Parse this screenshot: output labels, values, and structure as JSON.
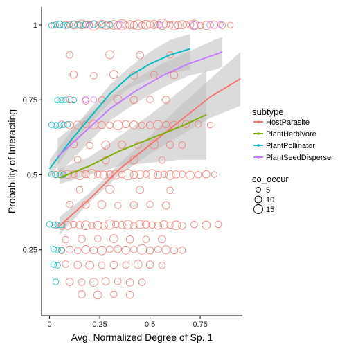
{
  "chart_data": {
    "type": "scatter",
    "title": "",
    "xlabel": "Avg. Normalized Degree of Sp. 1",
    "ylabel": "Probability of Interacting",
    "xlim": [
      -0.04,
      0.96
    ],
    "ylim": [
      0.03,
      1.06
    ],
    "x_ticks": [
      0,
      0.25,
      0.5,
      0.75
    ],
    "x_tick_labels": [
      "0",
      "0.25",
      "0.5",
      "0.75"
    ],
    "y_ticks": [
      0.25,
      0.5,
      0.75,
      1
    ],
    "y_tick_labels": [
      "0.25",
      "0.5",
      "0.75",
      "1"
    ],
    "grid": false,
    "colors": {
      "HostParasite": "#F8766D",
      "PlantHerbivore": "#7CAE00",
      "PlantPollinator": "#00BFC4",
      "PlantSeedDisperser": "#C77CFF",
      "ribbon": "#bdbdbd"
    },
    "legend_color": {
      "title": "subtype",
      "placement": "right",
      "entries": [
        "HostParasite",
        "PlantHerbivore",
        "PlantPollinator",
        "PlantSeedDisperser"
      ]
    },
    "legend_size": {
      "title": "co_occur",
      "placement": "right",
      "entries": [
        {
          "label": "5",
          "value": 5
        },
        {
          "label": "10",
          "value": 10
        },
        {
          "label": "15",
          "value": 15
        }
      ]
    },
    "points": [
      {
        "group": "HostParasite",
        "y": 1,
        "x": [
          0.02,
          0.05,
          0.08,
          0.1,
          0.12,
          0.14,
          0.16,
          0.18,
          0.2,
          0.22,
          0.24,
          0.26,
          0.28,
          0.3,
          0.32,
          0.34,
          0.36,
          0.38,
          0.4,
          0.42,
          0.44,
          0.46,
          0.48,
          0.5,
          0.52,
          0.54,
          0.56,
          0.58,
          0.6,
          0.62,
          0.64,
          0.66,
          0.68,
          0.7,
          0.72,
          0.75,
          0.78,
          0.82,
          0.86,
          0.9
        ],
        "co_occur": [
          4,
          5,
          6,
          4,
          7,
          5,
          8,
          6,
          5,
          9,
          4,
          7,
          6,
          5,
          8,
          6,
          10,
          5,
          7,
          6,
          9,
          5,
          8,
          6,
          7,
          5,
          10,
          6,
          5,
          8,
          6,
          7,
          5,
          6,
          9,
          5,
          7,
          6,
          5,
          4
        ]
      },
      {
        "group": "PlantPollinator",
        "y": 1,
        "x": [
          0.01,
          0.03,
          0.05,
          0.07,
          0.09,
          0.12,
          0.15,
          0.18,
          0.22,
          0.26,
          0.3
        ],
        "co_occur": [
          4,
          4,
          5,
          4,
          4,
          5,
          4,
          4,
          5,
          4,
          4
        ]
      },
      {
        "group": "PlantSeedDisperser",
        "y": 1,
        "x": [
          0.2,
          0.35,
          0.55,
          0.72,
          0.8,
          0.85
        ],
        "co_occur": [
          4,
          5,
          4,
          6,
          5,
          4
        ]
      },
      {
        "group": "HostParasite",
        "y": 0.5,
        "x": [
          0.03,
          0.06,
          0.09,
          0.12,
          0.15,
          0.18,
          0.21,
          0.24,
          0.27,
          0.3,
          0.33,
          0.36,
          0.39,
          0.42,
          0.45,
          0.48,
          0.51,
          0.54,
          0.57,
          0.6,
          0.63,
          0.66,
          0.7,
          0.74,
          0.78,
          0.82
        ],
        "co_occur": [
          5,
          6,
          7,
          5,
          8,
          6,
          9,
          5,
          7,
          6,
          8,
          5,
          10,
          6,
          7,
          5,
          9,
          6,
          5,
          8,
          6,
          5,
          7,
          5,
          6,
          4
        ]
      },
      {
        "group": "PlantPollinator",
        "y": 0.5,
        "x": [
          0.01,
          0.03,
          0.05,
          0.07
        ],
        "co_occur": [
          4,
          4,
          4,
          4
        ]
      },
      {
        "group": "HostParasite",
        "y": 0.333,
        "x": [
          0.03,
          0.06,
          0.09,
          0.12,
          0.15,
          0.18,
          0.21,
          0.24,
          0.27,
          0.3,
          0.33,
          0.36,
          0.39,
          0.42,
          0.45,
          0.48,
          0.51,
          0.54,
          0.57,
          0.6,
          0.63,
          0.66,
          0.72,
          0.78,
          0.84
        ],
        "co_occur": [
          5,
          6,
          7,
          5,
          6,
          8,
          5,
          7,
          6,
          9,
          5,
          6,
          8,
          5,
          7,
          6,
          5,
          6,
          7,
          5,
          8,
          6,
          5,
          7,
          5
        ]
      },
      {
        "group": "PlantPollinator",
        "y": 0.333,
        "x": [
          0.0,
          0.02,
          0.04,
          0.06
        ],
        "co_occur": [
          4,
          4,
          4,
          4
        ]
      },
      {
        "group": "HostParasite",
        "y": 0.25,
        "x": [
          0.06,
          0.1,
          0.14,
          0.18,
          0.22,
          0.26,
          0.3,
          0.34,
          0.38,
          0.42,
          0.46,
          0.5,
          0.54,
          0.58,
          0.62,
          0.66
        ],
        "co_occur": [
          5,
          6,
          5,
          7,
          6,
          8,
          5,
          6,
          7,
          5,
          9,
          6,
          5,
          7,
          6,
          5
        ]
      },
      {
        "group": "PlantPollinator",
        "y": 0.25,
        "x": [
          0.02,
          0.04,
          0.06
        ],
        "co_occur": [
          4,
          4,
          4
        ]
      },
      {
        "group": "HostParasite",
        "y": 0.667,
        "x": [
          0.06,
          0.1,
          0.14,
          0.18,
          0.22,
          0.26,
          0.3,
          0.34,
          0.38,
          0.42,
          0.46,
          0.5,
          0.54,
          0.58,
          0.62,
          0.68,
          0.74,
          0.8
        ],
        "co_occur": [
          5,
          6,
          7,
          5,
          8,
          6,
          5,
          9,
          6,
          7,
          5,
          6,
          8,
          5,
          7,
          6,
          5,
          4
        ]
      },
      {
        "group": "PlantPollinator",
        "y": 0.667,
        "x": [
          0.01,
          0.03,
          0.05,
          0.07,
          0.09
        ],
        "co_occur": [
          4,
          4,
          4,
          4,
          4
        ]
      },
      {
        "group": "HostParasite",
        "y": 0.75,
        "x": [
          0.1,
          0.18,
          0.26,
          0.34,
          0.42,
          0.5,
          0.58
        ],
        "co_occur": [
          5,
          6,
          5,
          7,
          6,
          5,
          6
        ]
      },
      {
        "group": "PlantPollinator",
        "y": 0.75,
        "x": [
          0.04,
          0.06,
          0.08,
          0.12
        ],
        "co_occur": [
          4,
          4,
          4,
          4
        ]
      },
      {
        "group": "HostParasite",
        "y": 0.2,
        "x": [
          0.08,
          0.14,
          0.2,
          0.26,
          0.32,
          0.38,
          0.44,
          0.5,
          0.56
        ],
        "co_occur": [
          5,
          6,
          7,
          5,
          6,
          5,
          7,
          6,
          5
        ]
      },
      {
        "group": "PlantPollinator",
        "y": 0.2,
        "x": [
          0.02,
          0.04
        ],
        "co_occur": [
          4,
          4
        ]
      },
      {
        "group": "HostParasite",
        "y": 0.143,
        "x": [
          0.1,
          0.16,
          0.22,
          0.28,
          0.34,
          0.4,
          0.46
        ],
        "co_occur": [
          6,
          5,
          7,
          6,
          5,
          6,
          5
        ]
      },
      {
        "group": "PlantPollinator",
        "y": 0.143,
        "x": [
          0.03
        ],
        "co_occur": [
          4
        ]
      },
      {
        "group": "HostParasite",
        "y": 0.1,
        "x": [
          0.16,
          0.24,
          0.32,
          0.4
        ],
        "co_occur": [
          6,
          7,
          5,
          6
        ]
      },
      {
        "group": "HostParasite",
        "y": 0.6,
        "x": [
          0.12,
          0.2,
          0.28,
          0.36,
          0.44,
          0.52,
          0.6,
          0.66
        ],
        "co_occur": [
          6,
          5,
          7,
          6,
          5,
          8,
          6,
          5
        ]
      },
      {
        "group": "HostParasite",
        "y": 0.4,
        "x": [
          0.1,
          0.18,
          0.26,
          0.34,
          0.42,
          0.5,
          0.58
        ],
        "co_occur": [
          5,
          6,
          7,
          5,
          6,
          5,
          6
        ]
      },
      {
        "group": "HostParasite",
        "y": 0.286,
        "x": [
          0.08,
          0.16,
          0.24,
          0.32,
          0.4,
          0.48,
          0.56
        ],
        "co_occur": [
          5,
          6,
          5,
          7,
          6,
          5,
          6
        ]
      },
      {
        "group": "HostParasite",
        "y": 0.833,
        "x": [
          0.12,
          0.22,
          0.32,
          0.42,
          0.52,
          0.62
        ],
        "co_occur": [
          6,
          5,
          7,
          6,
          5,
          6
        ]
      },
      {
        "group": "HostParasite",
        "y": 0.9,
        "x": [
          0.1,
          0.3,
          0.45,
          0.6
        ],
        "co_occur": [
          5,
          7,
          6,
          5
        ]
      },
      {
        "group": "HostParasite",
        "y": 0.45,
        "x": [
          0.15,
          0.3,
          0.45,
          0.6
        ],
        "co_occur": [
          5,
          7,
          6,
          5
        ]
      },
      {
        "group": "HostParasite",
        "y": 0.55,
        "x": [
          0.14,
          0.28,
          0.42,
          0.56
        ],
        "co_occur": [
          5,
          6,
          7,
          5
        ]
      },
      {
        "group": "PlantSeedDisperser",
        "y": 0.75,
        "x": [
          0.18,
          0.22
        ],
        "co_occur": [
          4,
          4
        ]
      }
    ],
    "fits": [
      {
        "group": "HostParasite",
        "x": [
          0.05,
          0.2,
          0.35,
          0.5,
          0.65,
          0.8,
          0.95
        ],
        "y": [
          0.33,
          0.42,
          0.52,
          0.6,
          0.68,
          0.76,
          0.82
        ],
        "ymin": [
          0.3,
          0.41,
          0.5,
          0.57,
          0.63,
          0.69,
          0.73
        ],
        "ymax": [
          0.36,
          0.44,
          0.54,
          0.63,
          0.73,
          0.82,
          0.91
        ]
      },
      {
        "group": "PlantHerbivore",
        "x": [
          0.05,
          0.2,
          0.35,
          0.5,
          0.65,
          0.78
        ],
        "y": [
          0.49,
          0.53,
          0.58,
          0.62,
          0.66,
          0.7
        ],
        "ymin": [
          0.47,
          0.5,
          0.53,
          0.54,
          0.55,
          0.55
        ],
        "ymax": [
          0.52,
          0.56,
          0.63,
          0.7,
          0.78,
          0.85
        ]
      },
      {
        "group": "PlantPollinator",
        "x": [
          0,
          0.1,
          0.2,
          0.3,
          0.4,
          0.5,
          0.6,
          0.7
        ],
        "y": [
          0.52,
          0.61,
          0.69,
          0.77,
          0.83,
          0.87,
          0.9,
          0.92
        ],
        "ymin": [
          0.49,
          0.59,
          0.67,
          0.74,
          0.79,
          0.82,
          0.84,
          0.85
        ],
        "ymax": [
          0.55,
          0.64,
          0.72,
          0.8,
          0.86,
          0.91,
          0.95,
          0.97
        ]
      },
      {
        "group": "PlantSeedDisperser",
        "x": [
          0.04,
          0.17,
          0.3,
          0.43,
          0.56,
          0.69,
          0.82,
          0.86
        ],
        "y": [
          0.56,
          0.64,
          0.72,
          0.78,
          0.83,
          0.87,
          0.9,
          0.91
        ],
        "ymin": [
          0.5,
          0.59,
          0.68,
          0.74,
          0.79,
          0.83,
          0.85,
          0.86
        ],
        "ymax": [
          0.62,
          0.69,
          0.76,
          0.82,
          0.87,
          0.91,
          0.95,
          0.96
        ]
      }
    ]
  }
}
